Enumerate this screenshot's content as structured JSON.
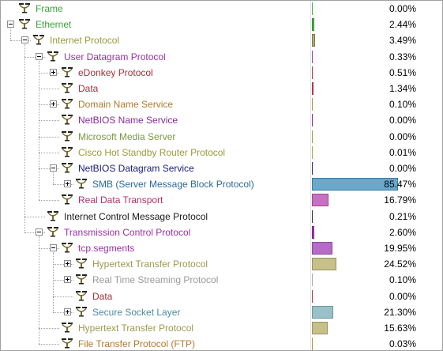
{
  "colors": {
    "bar_green": "#8fc2a6",
    "tree_line": "#a0a0a0"
  },
  "rows": [
    {
      "label": "Frame",
      "pct": "0.00%",
      "pct_value": 0.0,
      "level": 0,
      "toggle": "none",
      "text_color": "#3aa13a",
      "bar_color": "#40b040",
      "bar_border": "#2a8a2a",
      "min_bar": 1
    },
    {
      "label": "Ethernet",
      "pct": "2.44%",
      "pct_value": 2.44,
      "level": 0,
      "toggle": "minus",
      "text_color": "#3aa13a",
      "bar_color": "#5fc05f",
      "bar_border": "#2f8f2f",
      "min_bar": 0
    },
    {
      "label": "Internet Protocol",
      "pct": "3.49%",
      "pct_value": 3.49,
      "level": 1,
      "toggle": "minus",
      "text_color": "#9a9a3a",
      "bar_color": "#b6ad7a",
      "bar_border": "#807648",
      "min_bar": 0
    },
    {
      "label": "User Datagram Protocol",
      "pct": "0.33%",
      "pct_value": 0.33,
      "level": 2,
      "toggle": "minus",
      "text_color": "#9b2fa8",
      "bar_color": "#a838b4",
      "bar_border": "#7f2288",
      "min_bar": 1
    },
    {
      "label": "eDonkey Protocol",
      "pct": "0.51%",
      "pct_value": 0.51,
      "level": 3,
      "toggle": "plus",
      "text_color": "#a82d3a",
      "bar_color": "#b03a48",
      "bar_border": "#86242e",
      "min_bar": 1
    },
    {
      "label": "Data",
      "pct": "1.34%",
      "pct_value": 1.34,
      "level": 3,
      "toggle": "none",
      "text_color": "#a82d3a",
      "bar_color": "#b03a48",
      "bar_border": "#86242e",
      "min_bar": 1
    },
    {
      "label": "Domain Name Service",
      "pct": "0.10%",
      "pct_value": 0.1,
      "level": 3,
      "toggle": "plus",
      "text_color": "#b07a2a",
      "bar_color": "#b78c4a",
      "bar_border": "#8a6530",
      "min_bar": 1
    },
    {
      "label": "NetBIOS Name Service",
      "pct": "0.00%",
      "pct_value": 0.0,
      "level": 3,
      "toggle": "none",
      "text_color": "#8a2a9a",
      "bar_color": "#8a2a9a",
      "bar_border": "#661e72",
      "min_bar": 1
    },
    {
      "label": "Microsoft Media Server",
      "pct": "0.00%",
      "pct_value": 0.0,
      "level": 3,
      "toggle": "none",
      "text_color": "#7a9a3a",
      "bar_color": "#8aa84a",
      "bar_border": "#607a30",
      "min_bar": 1
    },
    {
      "label": "Cisco Hot Standby Router Protocol",
      "pct": "0.01%",
      "pct_value": 0.01,
      "level": 3,
      "toggle": "none",
      "text_color": "#9a9a3a",
      "bar_color": "#aaa64a",
      "bar_border": "#7a7630",
      "min_bar": 1
    },
    {
      "label": "NetBIOS Datagram Service",
      "pct": "0.00%",
      "pct_value": 0.0,
      "level": 3,
      "toggle": "minus",
      "text_color": "#1a1a7a",
      "bar_color": "#2a2a8a",
      "bar_border": "#1a1a6a",
      "min_bar": 1
    },
    {
      "label": "SMB (Server Message Block Protocol)",
      "pct": "85.47%",
      "pct_value": 85.47,
      "level": 4,
      "toggle": "plus",
      "text_color": "#2a6a9a",
      "bar_color": "#6aa8cc",
      "bar_border": "#3a7aa0",
      "min_bar": 0
    },
    {
      "label": "Real Data Transport",
      "pct": "16.79%",
      "pct_value": 16.79,
      "level": 3,
      "toggle": "none",
      "text_color": "#b0306a",
      "bar_color": "#c870c0",
      "bar_border": "#9a4a92",
      "min_bar": 0
    },
    {
      "label": "Internet Control Message Protocol",
      "pct": "0.21%",
      "pct_value": 0.21,
      "level": 2,
      "toggle": "none",
      "text_color": "#1a1a1a",
      "bar_color": "#333333",
      "bar_border": "#111111",
      "min_bar": 1
    },
    {
      "label": "Transmission Control Protocol",
      "pct": "2.60%",
      "pct_value": 2.6,
      "level": 2,
      "toggle": "minus",
      "text_color": "#9b2fa8",
      "bar_color": "#b040c0",
      "bar_border": "#7f2288",
      "min_bar": 0
    },
    {
      "label": "tcp.segments",
      "pct": "19.95%",
      "pct_value": 19.95,
      "level": 3,
      "toggle": "minus",
      "text_color": "#9b2fa8",
      "bar_color": "#b86ac8",
      "bar_border": "#8a4a9a",
      "min_bar": 0
    },
    {
      "label": "Hypertext Transfer Protocol",
      "pct": "24.52%",
      "pct_value": 24.52,
      "level": 4,
      "toggle": "plus",
      "text_color": "#9a9a4a",
      "bar_color": "#c6c08a",
      "bar_border": "#9a9460",
      "min_bar": 0
    },
    {
      "label": "Real Time Streaming Protocol",
      "pct": "0.10%",
      "pct_value": 0.1,
      "level": 4,
      "toggle": "plus",
      "text_color": "#9a9a9a",
      "bar_color": "#aaaaaa",
      "bar_border": "#888888",
      "min_bar": 1
    },
    {
      "label": "Data",
      "pct": "0.00%",
      "pct_value": 0.0,
      "level": 4,
      "toggle": "none",
      "text_color": "#a82d3a",
      "bar_color": "#b03a48",
      "bar_border": "#86242e",
      "min_bar": 1
    },
    {
      "label": "Secure Socket Layer",
      "pct": "21.30%",
      "pct_value": 21.3,
      "level": 4,
      "toggle": "plus",
      "text_color": "#4a8aa0",
      "bar_color": "#9ac0c8",
      "bar_border": "#6a98a0",
      "min_bar": 0
    },
    {
      "label": "Hypertext Transfer Protocol",
      "pct": "15.63%",
      "pct_value": 15.63,
      "level": 3,
      "toggle": "none",
      "text_color": "#9a9a4a",
      "bar_color": "#c6c08a",
      "bar_border": "#9a9460",
      "min_bar": 0
    },
    {
      "label": "File Transfer Protocol (FTP)",
      "pct": "0.03%",
      "pct_value": 0.03,
      "level": 3,
      "toggle": "none",
      "text_color": "#b07a2a",
      "bar_color": "#b78c4a",
      "bar_border": "#8a6530",
      "min_bar": 1
    }
  ]
}
